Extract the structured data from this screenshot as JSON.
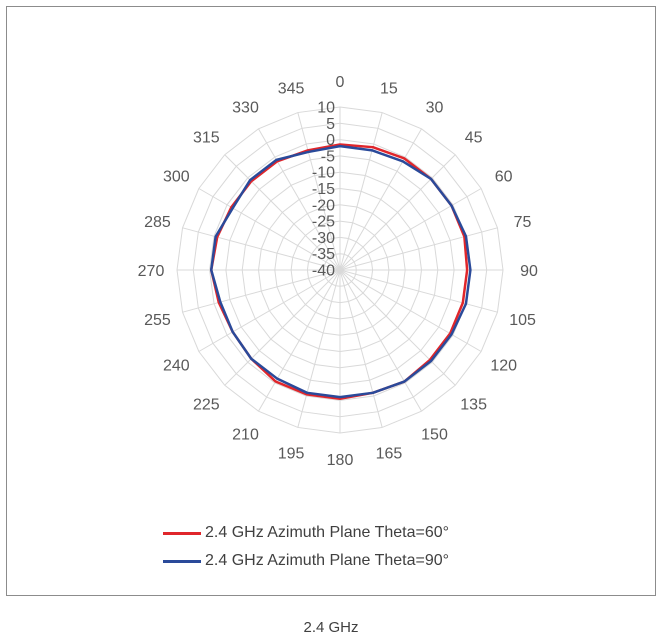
{
  "caption": "2.4 GHz",
  "chart_data": {
    "type": "radar",
    "angles": [
      0,
      15,
      30,
      45,
      60,
      75,
      90,
      105,
      120,
      135,
      150,
      165,
      180,
      195,
      210,
      225,
      240,
      255,
      270,
      285,
      300,
      315,
      330,
      345
    ],
    "angle_labels": [
      "0",
      "15",
      "30",
      "45",
      "60",
      "75",
      "90",
      "105",
      "120",
      "135",
      "150",
      "165",
      "180",
      "195",
      "210",
      "225",
      "240",
      "255",
      "270",
      "285",
      "300",
      "315",
      "330",
      "345"
    ],
    "r_ticks": [
      10,
      5,
      0,
      -5,
      -10,
      -15,
      -20,
      -25,
      -30,
      -35,
      -40
    ],
    "r_tick_labels": [
      "10",
      "5",
      "0",
      "-5",
      "-10",
      "-15",
      "-20",
      "-25",
      "-30",
      "-35",
      "-40"
    ],
    "rlim": [
      -40,
      10
    ],
    "grid": true,
    "legend_position": "bottom",
    "series": [
      {
        "name": "2.4 GHz Azimuth Plane Theta=60°",
        "color": "#e0262b",
        "values": [
          -1.5,
          -1.0,
          -0.5,
          -0.5,
          -0.5,
          -0.5,
          -1.0,
          -1.0,
          -1.0,
          -1.0,
          -0.5,
          -1.0,
          -0.5,
          -0.5,
          -0.5,
          -1.5,
          -2.0,
          -1.5,
          -0.5,
          -1.0,
          -1.5,
          -1.5,
          -1.5,
          -2.0
        ]
      },
      {
        "name": "2.4 GHz Azimuth Plane Theta=90°",
        "color": "#2a4a9a",
        "values": [
          -2.0,
          -2.0,
          -1.5,
          -0.5,
          -0.5,
          0.0,
          0.0,
          0.0,
          -0.5,
          -0.5,
          -0.5,
          -1.0,
          -1.0,
          -1.0,
          -1.5,
          -1.5,
          -2.0,
          -2.0,
          -0.5,
          -0.5,
          -2.0,
          -1.0,
          -1.0,
          -2.5
        ]
      }
    ]
  }
}
